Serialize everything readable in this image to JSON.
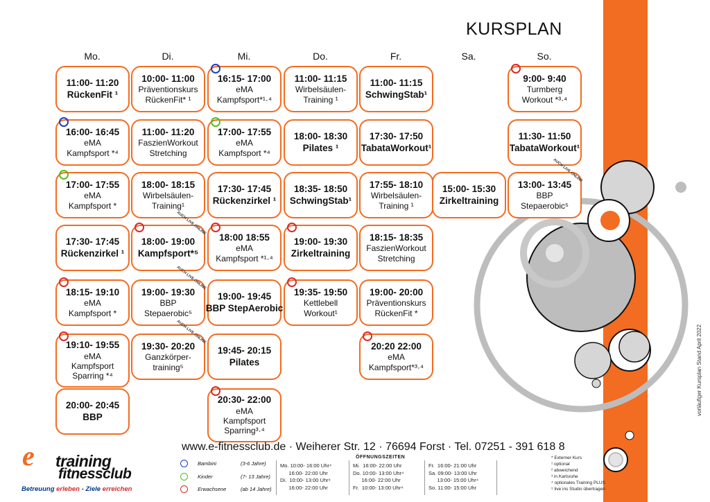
{
  "title": "KURSPLAN",
  "days": [
    "Mo.",
    "Di.",
    "Mi.",
    "Do.",
    "Fr.",
    "Sa.",
    "So."
  ],
  "courses": [
    {
      "time": "11:00- 11:20",
      "lines": [
        "RückenFit ¹"
      ],
      "dot": null
    },
    {
      "time": "16:00- 16:45",
      "lines": [
        "eMA",
        "Kampfsport *⁴"
      ],
      "dot": "blue"
    },
    {
      "time": "17:00- 17:55",
      "lines": [
        "eMA",
        "Kampfsport *"
      ],
      "dot": "green"
    },
    {
      "time": "17:30- 17:45",
      "lines": [
        "Rückenzirkel ¹"
      ],
      "dot": null
    },
    {
      "time": "18:15- 19:10",
      "lines": [
        "eMA",
        "Kampfsport *"
      ],
      "dot": "red"
    },
    {
      "time": "19:10- 19:55",
      "lines": [
        "eMA",
        "Kampfsport",
        "Sparring *⁴"
      ],
      "dot": "red"
    },
    {
      "time": "20:00- 20:45",
      "lines": [
        "BBP"
      ],
      "dot": null
    },
    {
      "time": "10:00- 11:00",
      "lines": [
        "Präventionskurs",
        "RückenFit* ¹"
      ],
      "dot": null
    },
    {
      "time": "11:00- 11:20",
      "lines": [
        "FaszienWorkout",
        "Stretching"
      ],
      "dot": null
    },
    {
      "time": "18:00- 18:15",
      "lines": [
        "Wirbelsäulen-",
        "Training¹"
      ],
      "dot": null
    },
    {
      "time": "18:00- 19:00",
      "lines": [
        "Kampfsport*⁵"
      ],
      "dot": "red",
      "live": "AUCH LIVE ONLINE"
    },
    {
      "time": "19:00- 19:30",
      "lines": [
        "BBP",
        "Stepaerobic⁵"
      ],
      "dot": null,
      "live": "AUCH LIVE ONLINE"
    },
    {
      "time": "19:30- 20:20",
      "lines": [
        "Ganzkörper-",
        "training⁵"
      ],
      "dot": null,
      "live": "AUCH LIVE ONLINE"
    },
    {
      "time": "16:15- 17:00",
      "lines": [
        "eMA",
        "Kampfsport*¹·⁴"
      ],
      "dot": "blue"
    },
    {
      "time": "17:00- 17:55",
      "lines": [
        "eMA",
        "Kampfsport *⁴"
      ],
      "dot": "green"
    },
    {
      "time": "17:30- 17:45",
      "lines": [
        "Rückenzirkel ¹"
      ],
      "dot": null
    },
    {
      "time": "18:00 18:55",
      "lines": [
        "eMA",
        "Kampfsport *¹·⁴"
      ],
      "dot": "red"
    },
    {
      "time": "19:00- 19:45",
      "lines": [
        "BBP StepAerobic"
      ],
      "dot": null
    },
    {
      "time": "19:45- 20:15",
      "lines": [
        "Pilates"
      ],
      "dot": null
    },
    {
      "time": "20:30- 22:00",
      "lines": [
        "eMA",
        "Kampfsport",
        "Sparring³·⁴"
      ],
      "dot": "red"
    },
    {
      "time": "11:00- 11:15",
      "lines": [
        "Wirbelsäulen-",
        "Training ¹"
      ],
      "dot": null
    },
    {
      "time": "18:00- 18:30",
      "lines": [
        "Pilates ¹"
      ],
      "dot": null
    },
    {
      "time": "18:35- 18:50",
      "lines": [
        "SchwingStab¹"
      ],
      "dot": null
    },
    {
      "time": "19:00- 19:30",
      "lines": [
        "Zirkeltraining"
      ],
      "dot": "red"
    },
    {
      "time": "19:35- 19:50",
      "lines": [
        "Kettlebell",
        "Workout¹"
      ],
      "dot": "red"
    },
    {
      "time": "11:00- 11:15",
      "lines": [
        "SchwingStab¹"
      ],
      "dot": null
    },
    {
      "time": "17:30- 17:50",
      "lines": [
        "TabataWorkout¹"
      ],
      "dot": null
    },
    {
      "time": "17:55- 18:10",
      "lines": [
        "Wirbelsäulen-",
        "Training ¹"
      ],
      "dot": null
    },
    {
      "time": "18:15- 18:35",
      "lines": [
        "FaszienWorkout",
        "Stretching"
      ],
      "dot": null
    },
    {
      "time": "19:00- 20:00",
      "lines": [
        "Präventionskurs",
        "RückenFit *"
      ],
      "dot": null
    },
    {
      "time": "20:20 22:00",
      "lines": [
        "eMA",
        "Kampfsport*³·⁴"
      ],
      "dot": "red"
    },
    {
      "time": "15:00- 15:30",
      "lines": [
        "Zirkeltraining"
      ],
      "dot": null
    },
    {
      "time": "9:00- 9:40",
      "lines": [
        "Turmberg",
        "Workout *³·⁴"
      ],
      "dot": "red"
    },
    {
      "time": "11:30- 11:50",
      "lines": [
        "TabataWorkout¹"
      ],
      "dot": null
    },
    {
      "time": "13:00- 13:45",
      "lines": [
        "BBP",
        "Stepaerobic⁵"
      ],
      "dot": null,
      "live": "AUCH LIVE ONLINE"
    }
  ],
  "contact": "www.e-fitnessclub.de  ·  Weiherer Str. 12  ·  76694 Forst  ·  Tel. 07251 - 391 618 8",
  "legend": [
    {
      "label": "Bambini",
      "age": "(3-6 Jahre)",
      "color": "#1d3fc4"
    },
    {
      "label": "Kinder",
      "age": "(7- 13 Jahre)",
      "color": "#4cc21d"
    },
    {
      "label": "Erwachsene",
      "age": "(ab 14 Jahre)",
      "color": "#d62b2b"
    }
  ],
  "opening": {
    "title": "ÖFFNUNGSZEITEN",
    "col1": "Mo. 10:00- 16:00 Uhr⁴\n      16:00- 22:00 Uhr\nDi.  10:00- 13:00 Uhr⁴\n      16:00- 22:00 Uhr",
    "col2": "Mi.  16:00- 22:00 Uhr\nDo. 10:00- 13:00 Uhr⁴\n      16:00- 22:00 Uhr\nFr.  10:00- 13:00 Uhr⁴",
    "col3": "Fr.  16:00- 21:00 Uhr\nSa. 09:00- 13:00 Uhr\n      13:00- 15:00 Uhr⁴\nSo. 11:00- 15:00 Uhr"
  },
  "notes": [
    "* Externer Kurs",
    "¹ optional",
    "² abweichend",
    "³ in Karlsruhe",
    "⁴ optionales Training PLUS",
    "⁵ live ins Studio übertragen"
  ],
  "stand_note": "vorläufiger Kursplan Stand April 2022",
  "logo": {
    "e": "e",
    "line1": "training",
    "line2": "fitnessclub",
    "slogan_a": "Betreuung ",
    "slogan_b": "erleben",
    "slogan_c": " - Ziele ",
    "slogan_d": "erreichen"
  },
  "colors": {
    "accent": "#f26c21",
    "blue": "#1d3fc4",
    "green": "#4cc21d",
    "red": "#d62b2b",
    "circle_gray": "#bdbdbd"
  }
}
